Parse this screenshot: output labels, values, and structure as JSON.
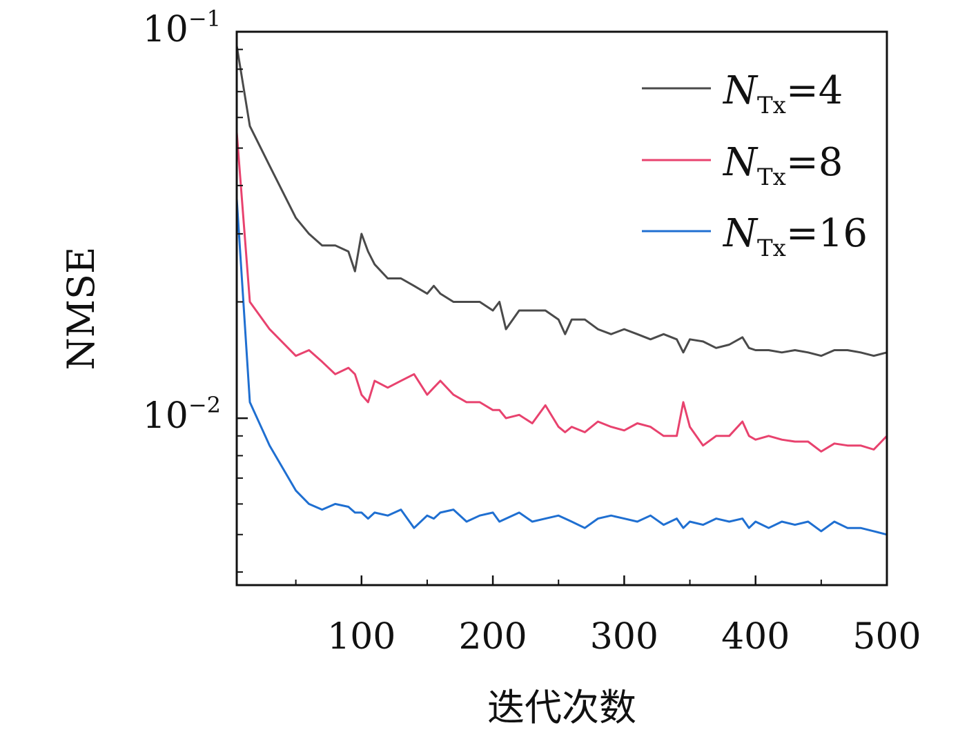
{
  "chart_data": {
    "type": "line",
    "ylabel": "NMSE",
    "xlabel": "迭代次数",
    "xlim": [
      5,
      500
    ],
    "ylim": [
      0.0037,
      0.1
    ],
    "yscale": "log",
    "xticks": [
      100,
      200,
      300,
      400,
      500
    ],
    "xtick_labels": [
      "100",
      "200",
      "300",
      "400",
      "500"
    ],
    "yticks": [
      0.1,
      0.01
    ],
    "ytick_labels": [
      {
        "base": "10",
        "exp": "−1"
      },
      {
        "base": "10",
        "exp": "−2"
      }
    ],
    "legend_position": "top-right",
    "grid": false,
    "x": [
      5,
      15,
      30,
      50,
      60,
      70,
      80,
      90,
      95,
      100,
      105,
      110,
      120,
      130,
      140,
      150,
      155,
      160,
      170,
      180,
      190,
      200,
      205,
      210,
      220,
      230,
      240,
      250,
      255,
      260,
      270,
      280,
      290,
      300,
      310,
      320,
      330,
      340,
      345,
      350,
      360,
      370,
      380,
      390,
      395,
      400,
      410,
      420,
      430,
      440,
      450,
      460,
      470,
      480,
      490,
      500
    ],
    "series": [
      {
        "legend_var": "N",
        "legend_sub": "Tx",
        "legend_value": "=4",
        "color": "#4a4a4a",
        "values": [
          0.092,
          0.057,
          0.045,
          0.033,
          0.03,
          0.028,
          0.028,
          0.027,
          0.024,
          0.03,
          0.027,
          0.025,
          0.023,
          0.023,
          0.022,
          0.021,
          0.022,
          0.021,
          0.02,
          0.02,
          0.02,
          0.019,
          0.02,
          0.017,
          0.019,
          0.019,
          0.019,
          0.018,
          0.0165,
          0.018,
          0.018,
          0.017,
          0.0165,
          0.017,
          0.0165,
          0.016,
          0.0165,
          0.016,
          0.0148,
          0.016,
          0.0158,
          0.0152,
          0.0155,
          0.0162,
          0.0152,
          0.015,
          0.015,
          0.0148,
          0.015,
          0.0148,
          0.0145,
          0.015,
          0.015,
          0.0148,
          0.0145,
          0.0148
        ]
      },
      {
        "legend_var": "N",
        "legend_sub": "Tx",
        "legend_value": "=8",
        "color": "#e8426e",
        "values": [
          0.055,
          0.02,
          0.017,
          0.0145,
          0.015,
          0.014,
          0.013,
          0.0135,
          0.013,
          0.0115,
          0.011,
          0.0125,
          0.012,
          0.0125,
          0.013,
          0.0115,
          0.012,
          0.0125,
          0.0115,
          0.011,
          0.011,
          0.0105,
          0.0105,
          0.01,
          0.0102,
          0.0097,
          0.0108,
          0.0095,
          0.0092,
          0.0095,
          0.0092,
          0.0098,
          0.0095,
          0.0093,
          0.0097,
          0.0095,
          0.009,
          0.009,
          0.011,
          0.0095,
          0.0085,
          0.009,
          0.009,
          0.0098,
          0.009,
          0.0088,
          0.009,
          0.0088,
          0.0087,
          0.0087,
          0.0082,
          0.0086,
          0.0085,
          0.0085,
          0.0083,
          0.009
        ]
      },
      {
        "legend_var": "N",
        "legend_sub": "Tx",
        "legend_value": "=16",
        "color": "#1f6fd1",
        "values": [
          0.037,
          0.011,
          0.0085,
          0.0065,
          0.006,
          0.0058,
          0.006,
          0.0059,
          0.0057,
          0.0057,
          0.0055,
          0.0057,
          0.0056,
          0.0058,
          0.0052,
          0.0056,
          0.0055,
          0.0057,
          0.0058,
          0.0054,
          0.0056,
          0.0057,
          0.0054,
          0.0055,
          0.0057,
          0.0054,
          0.0055,
          0.0056,
          0.0055,
          0.0054,
          0.0052,
          0.0055,
          0.0056,
          0.0055,
          0.0054,
          0.0056,
          0.0053,
          0.0055,
          0.0052,
          0.0054,
          0.0053,
          0.0055,
          0.0054,
          0.0055,
          0.0052,
          0.0054,
          0.0052,
          0.0054,
          0.0053,
          0.0054,
          0.0051,
          0.0054,
          0.0052,
          0.0052,
          0.0051,
          0.005
        ]
      }
    ]
  }
}
